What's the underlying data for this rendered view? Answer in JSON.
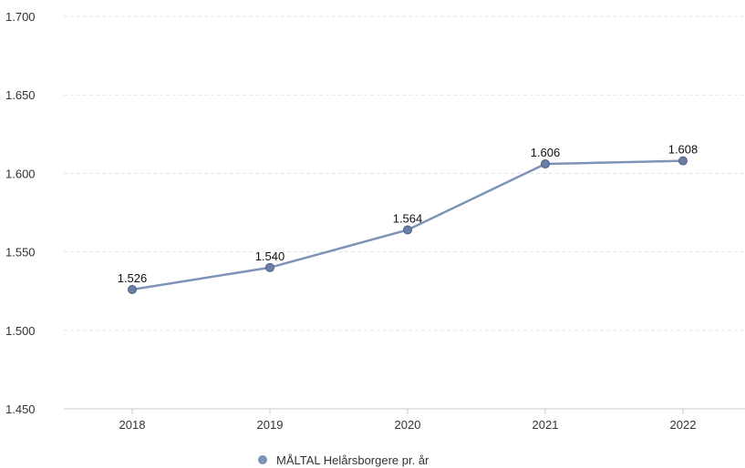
{
  "chart_data": {
    "type": "line",
    "categories": [
      "2018",
      "2019",
      "2020",
      "2021",
      "2022"
    ],
    "series": [
      {
        "name": "MÅLTAL Helårsborgere pr. år",
        "values": [
          1526,
          1540,
          1564,
          1606,
          1608
        ],
        "labels": [
          "1.526",
          "1.540",
          "1.564",
          "1.606",
          "1.608"
        ],
        "color": "#7f93b8",
        "marker_color": "#6a7fa6"
      }
    ],
    "yticks": [
      "1.450",
      "1.500",
      "1.550",
      "1.600",
      "1.650",
      "1.700"
    ],
    "ylim": [
      1450,
      1700
    ],
    "title": "",
    "xlabel": "",
    "ylabel": "",
    "grid": true,
    "legend": "bottom-center"
  }
}
